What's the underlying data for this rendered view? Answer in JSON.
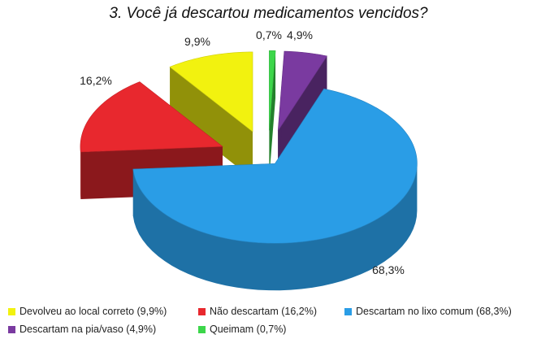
{
  "chart_data": {
    "type": "pie",
    "title": "3. Você já descartou medicamentos vencidos?",
    "exploded": true,
    "three_d": true,
    "legend_position": "bottom",
    "slices": [
      {
        "name": "Devolveu ao local correto (9,9%)",
        "value": 9.9,
        "label": "9,9%",
        "color": "#f2f20f"
      },
      {
        "name": "Não descartam (16,2%)",
        "value": 16.2,
        "label": "16,2%",
        "color": "#e8282e"
      },
      {
        "name": "Descartam no lixo comum (68,3%)",
        "value": 68.3,
        "label": "68,3%",
        "color": "#2a9de6"
      },
      {
        "name": "Descartam na pia/vaso (4,9%)",
        "value": 4.9,
        "label": "4,9%",
        "color": "#7a3aa0"
      },
      {
        "name": "Queimam (0,7%)",
        "value": 0.7,
        "label": "0,7%",
        "color": "#3cd64a"
      }
    ]
  }
}
